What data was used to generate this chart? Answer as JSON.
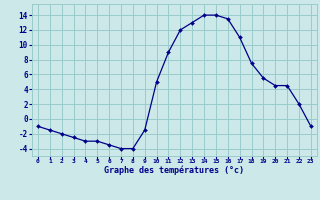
{
  "hours": [
    0,
    1,
    2,
    3,
    4,
    5,
    6,
    7,
    8,
    9,
    10,
    11,
    12,
    13,
    14,
    15,
    16,
    17,
    18,
    19,
    20,
    21,
    22,
    23
  ],
  "temperatures": [
    -1,
    -1.5,
    -2,
    -2.5,
    -3,
    -3,
    -3.5,
    -4,
    -4,
    -1.5,
    5,
    9,
    12,
    13,
    14,
    14,
    13.5,
    11,
    7.5,
    5.5,
    4.5,
    4.5,
    2,
    -1
  ],
  "line_color": "#00008B",
  "marker_color": "#00008B",
  "bg_color": "#cce8e8",
  "grid_color": "#99cccc",
  "xlabel": "Graphe des températures (°c)",
  "xlabel_color": "#00008B",
  "tick_color": "#00008B",
  "ylim": [
    -5,
    15
  ],
  "yticks": [
    -4,
    -2,
    0,
    2,
    4,
    6,
    8,
    10,
    12,
    14
  ],
  "xticks": [
    0,
    1,
    2,
    3,
    4,
    5,
    6,
    7,
    8,
    9,
    10,
    11,
    12,
    13,
    14,
    15,
    16,
    17,
    18,
    19,
    20,
    21,
    22,
    23
  ]
}
